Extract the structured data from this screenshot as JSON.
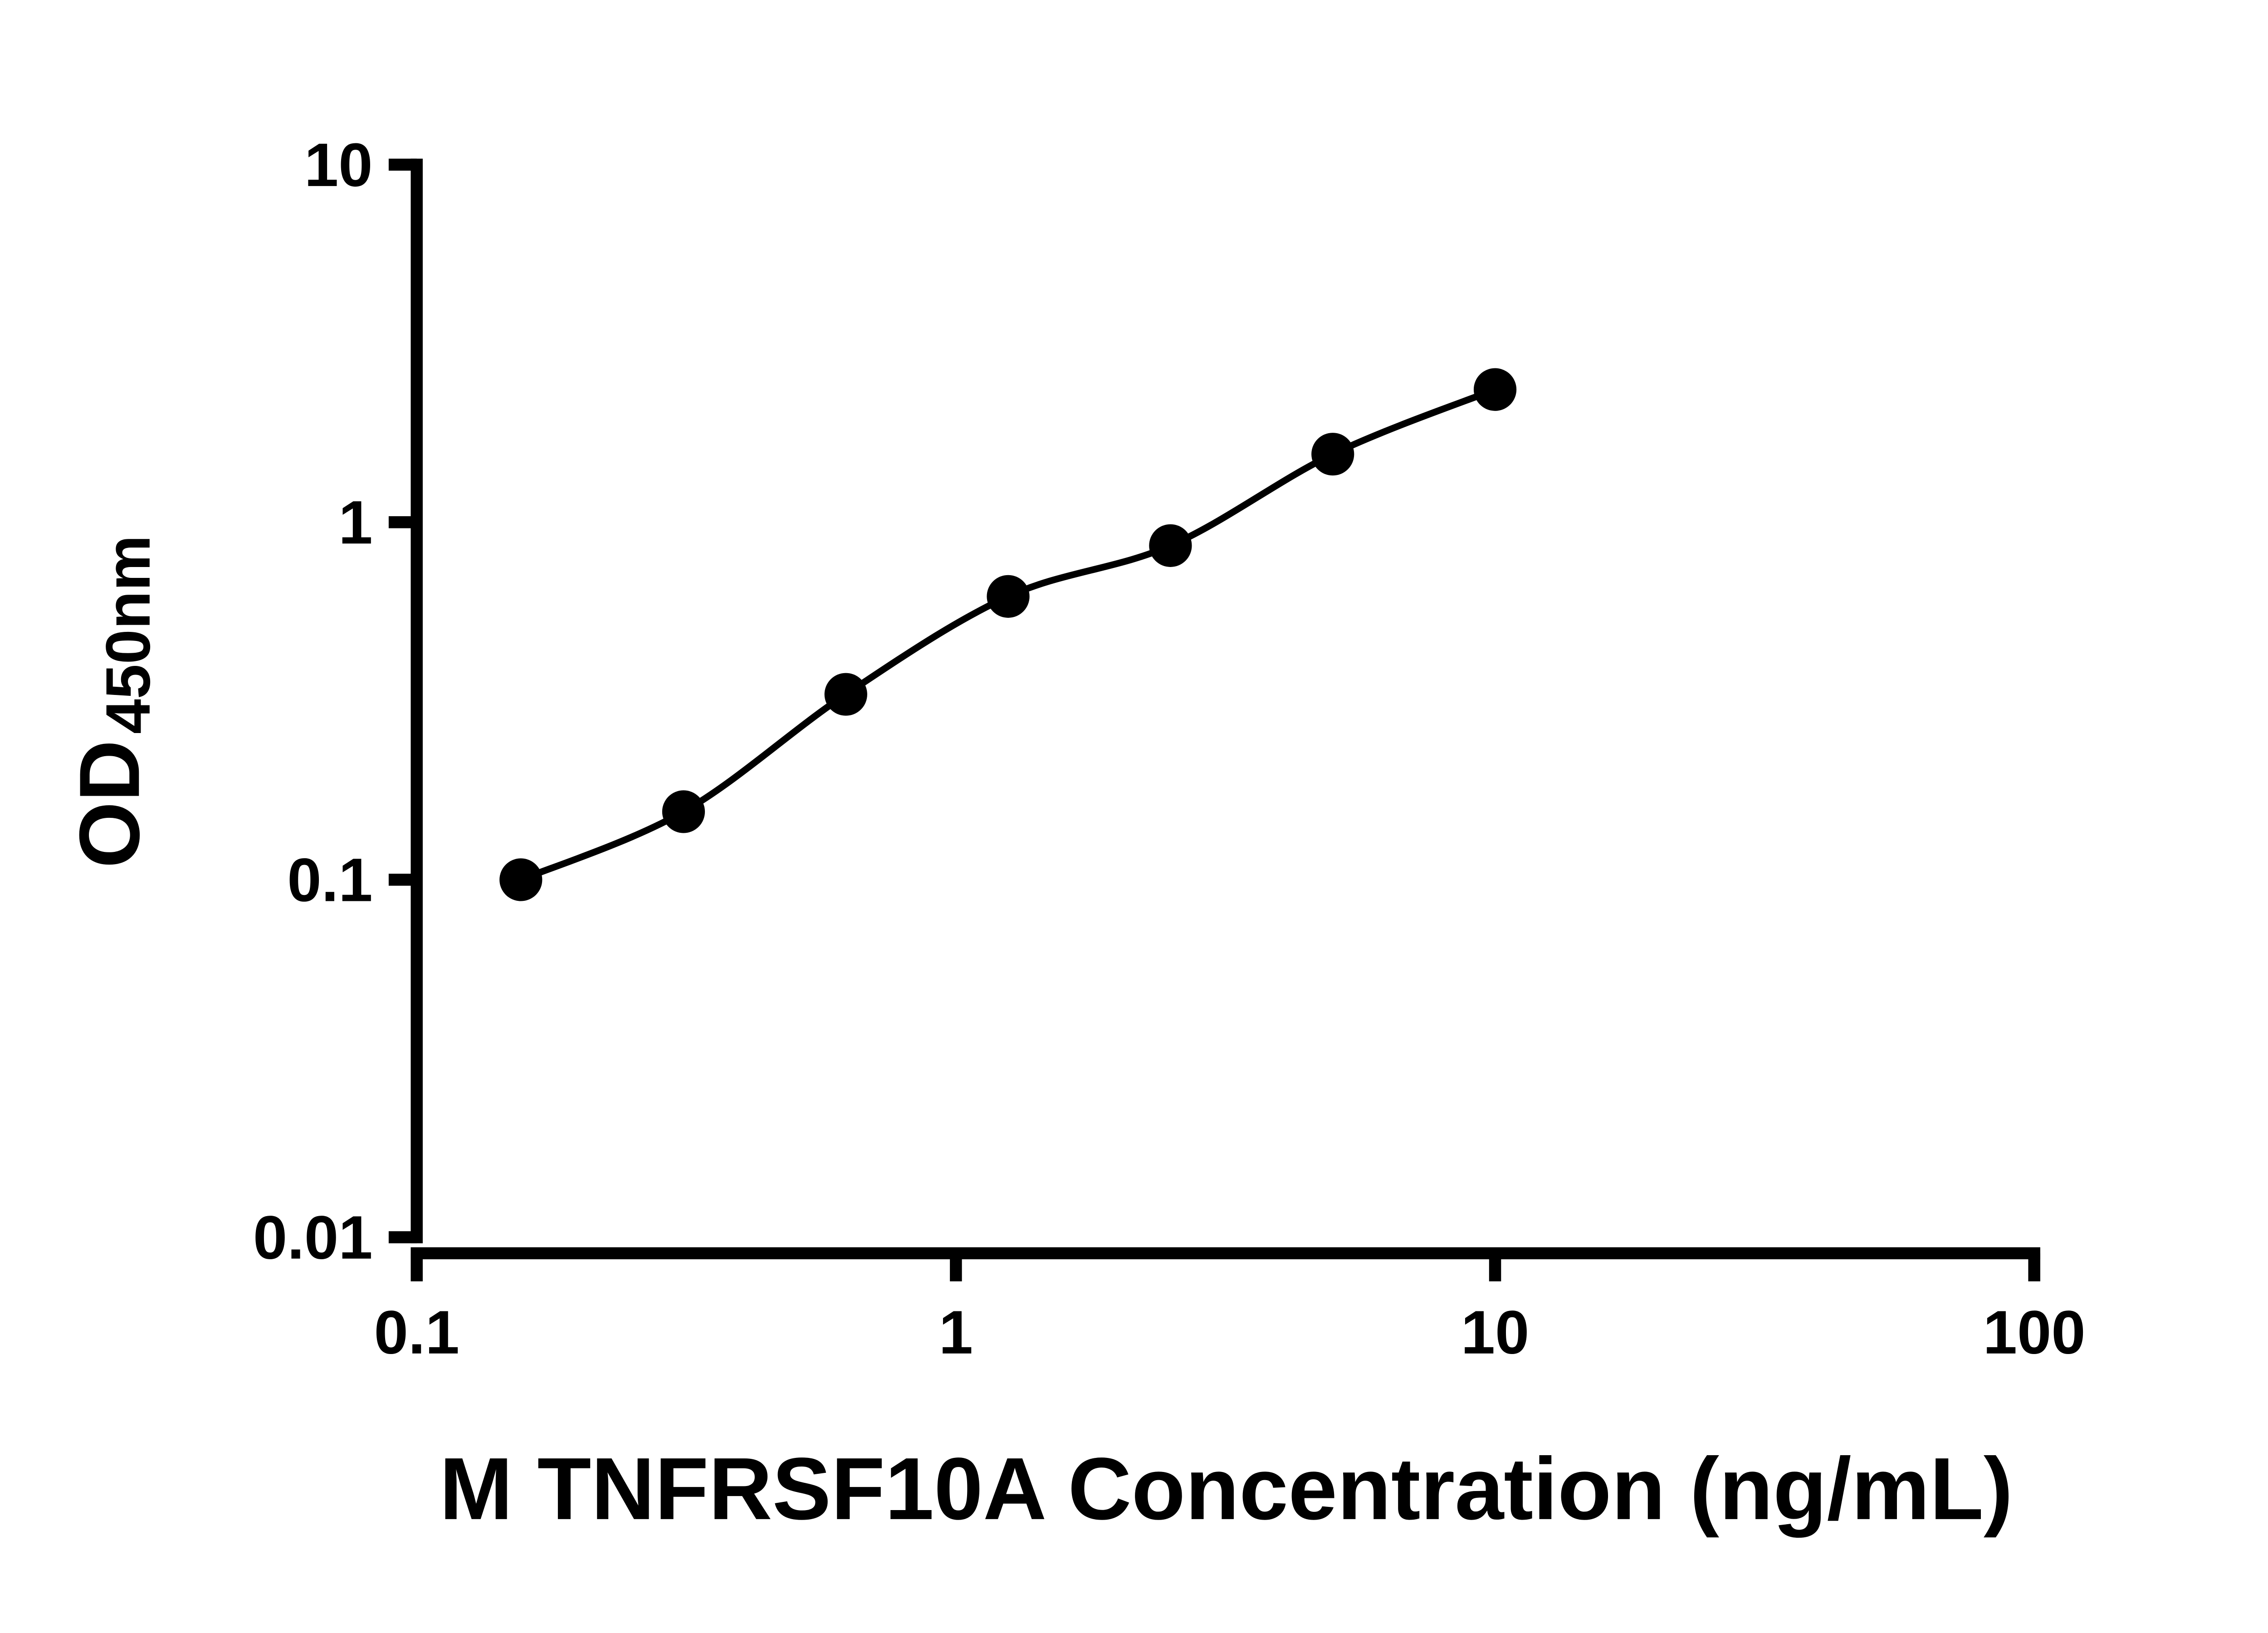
{
  "chart_data": {
    "type": "scatter",
    "subtype": "standard-curve-with-fitted-line",
    "x": [
      0.156,
      0.3125,
      0.625,
      1.25,
      2.5,
      5,
      10
    ],
    "y": [
      0.1,
      0.155,
      0.33,
      0.62,
      0.86,
      1.55,
      2.35
    ],
    "xlabel": "M TNFRSF10A Concentration (ng/mL)",
    "ylabel_main": "OD",
    "ylabel_sub": "450nm",
    "x_scale": "log",
    "y_scale": "log",
    "xlim": [
      0.1,
      100
    ],
    "ylim": [
      0.01,
      10
    ],
    "x_ticks": [
      0.1,
      1,
      10,
      100
    ],
    "x_tick_labels": [
      "0.1",
      "1",
      "10",
      "100"
    ],
    "y_ticks": [
      10,
      1,
      0.1,
      0.01
    ],
    "y_tick_labels": [
      "10",
      "1",
      "0.1",
      "0.01"
    ],
    "grid": "off",
    "legend": "none",
    "axis_color": "#000000",
    "text_color": "#000000",
    "point_color": "#000000",
    "line_color": "#000000",
    "background_color": "#ffffff"
  }
}
